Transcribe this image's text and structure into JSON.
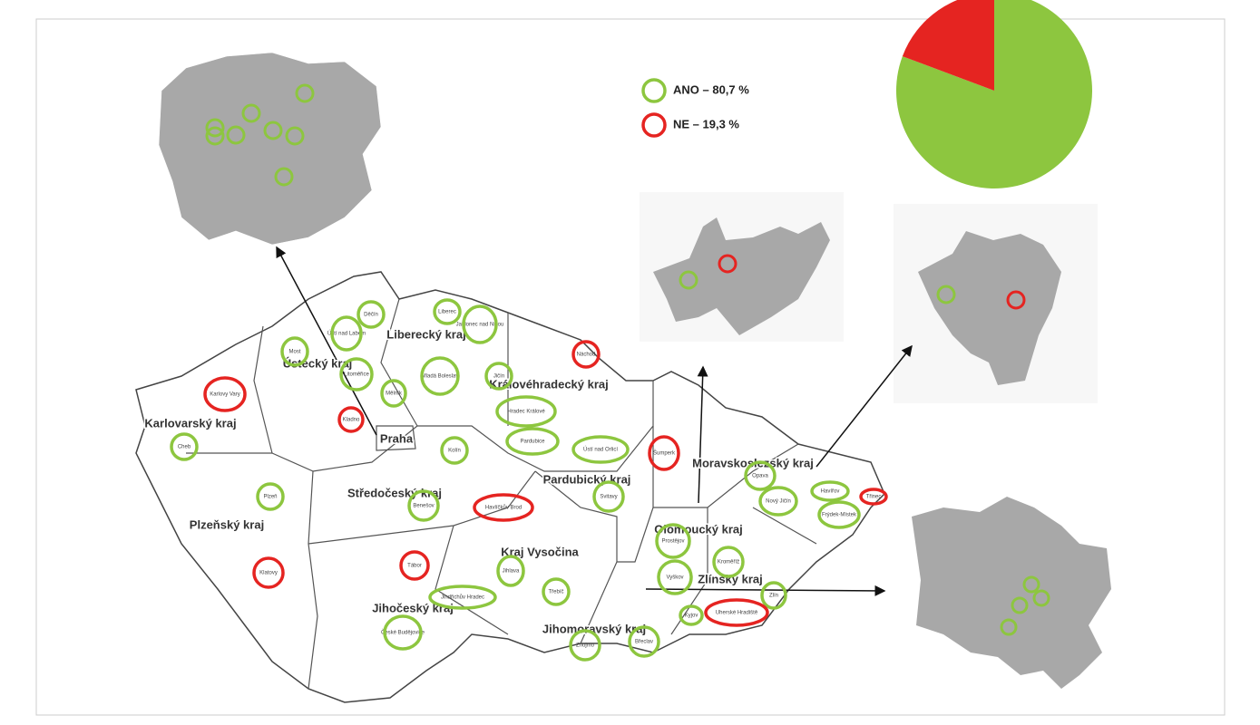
{
  "chart_data": {
    "type": "pie",
    "categories": [
      "ANO – 80,7 %",
      "NE – 19,3 %"
    ],
    "values": [
      80.7,
      19.3
    ],
    "colors": [
      "#8dc63f",
      "#e52421"
    ]
  },
  "map": {
    "regions": [
      "Liberecký kraj",
      "Ústecký kraj",
      "Královéhradecký kraj",
      "Karlovarský kraj",
      "Praha",
      "Středočeský kraj",
      "Plzeňský kraj",
      "Pardubický kraj",
      "Kraj Vysočina",
      "Jihočeský kraj",
      "Jihomoravský kraj",
      "Olomoucký kraj",
      "Moravskoslezský kraj",
      "Zlínský kraj"
    ],
    "cities": [
      "Cheb",
      "Karlovy Vary",
      "Most",
      "Děčín",
      "Ústí nad Labem",
      "Litoměřice",
      "Mělník",
      "Kladno",
      "Liberec",
      "Jablonec nad Nisou",
      "Mladá Boleslav",
      "Jičín",
      "Náchod",
      "Hradec Králové",
      "Pardubice",
      "Ústí nad Orlicí",
      "Šumperk",
      "Kolín",
      "Plzeň",
      "Benešov",
      "Havlíčkův Brod",
      "Svitavy",
      "Opava",
      "Nový Jičín",
      "Havířov",
      "Třinec",
      "Frýdek-Místek",
      "Prostějov",
      "Kroměříž",
      "Vyškov",
      "Zlín",
      "Uherské Hradiště",
      "Kyjov",
      "Klatovy",
      "Tábor",
      "Jihlava",
      "Třebíč",
      "Jindřichův Hradec",
      "České Budějovice",
      "Znojmo",
      "Břeclav"
    ],
    "city_answer": [
      0,
      1,
      0,
      0,
      0,
      0,
      0,
      1,
      0,
      0,
      0,
      0,
      1,
      0,
      0,
      0,
      1,
      0,
      0,
      0,
      1,
      0,
      0,
      0,
      0,
      1,
      0,
      0,
      0,
      0,
      0,
      1,
      0,
      1,
      1,
      0,
      0,
      0,
      0,
      0,
      0
    ]
  }
}
